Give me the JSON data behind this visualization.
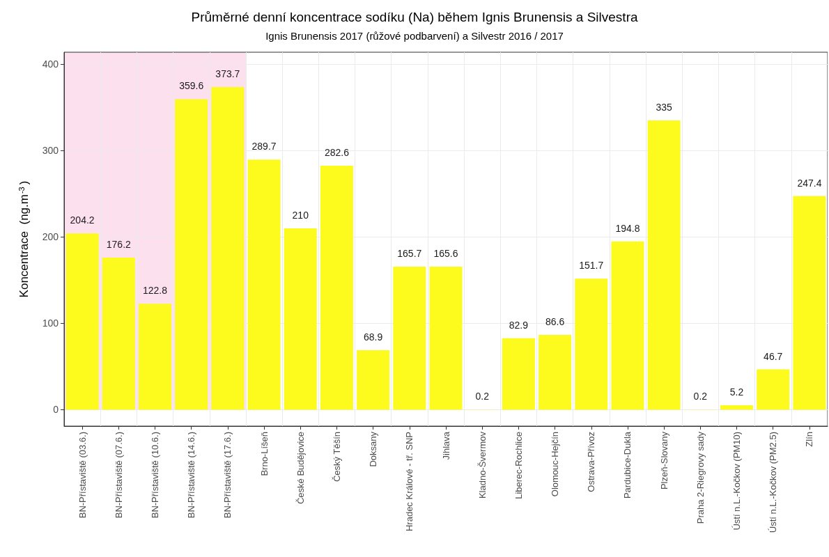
{
  "chart_data": {
    "type": "bar",
    "title": "Průměrné denní koncentrace sodíku (Na) během Ignis Brunensis a Silvestra",
    "subtitle": "Ignis Brunensis 2017 (růžové podbarvení) a Silvestr 2016 / 2017",
    "ylabel": "Koncentrace  (ng.m$^{-3}$)",
    "categories": [
      "BN-Přístaviště (03.6.)",
      "BN-Přístaviště (07.6.)",
      "BN-Přístaviště (10.6.)",
      "BN-Přístaviště (14.6.)",
      "BN-Přístaviště (17.6.)",
      "Brno-Líšeň",
      "České Budějovice",
      "Český Těšín",
      "Doksany",
      "Hradec Králové - tř. SNP",
      "Jihlava",
      "Kladno-Švermov",
      "Liberec-Rochlice",
      "Olomouc-Hejčín",
      "Ostrava-Přívoz",
      "Pardubice-Dukla",
      "Plzeň-Slovany",
      "Praha 2-Riegrovy sady",
      "Ústí n.L.-Kočkov (PM10)",
      "Ústí n.L.-Kočkov (PM2.5)",
      "Zlín"
    ],
    "values": [
      204.2,
      176.2,
      122.8,
      359.6,
      373.7,
      289.7,
      210,
      282.6,
      68.9,
      165.7,
      165.6,
      0.2,
      82.9,
      86.6,
      151.7,
      194.8,
      335,
      0.2,
      5.2,
      46.7,
      247.4
    ],
    "color": "#fdfa1e",
    "data_labels": true,
    "ylim": [
      -19,
      414
    ],
    "yticks": [
      0,
      100,
      200,
      300,
      400
    ],
    "grid": true,
    "bands": [
      {
        "axis": "x",
        "from": "BN-Přístaviště (03.6.)",
        "to": "BN-Přístaviště (17.6.)",
        "color": "#fde0ee"
      }
    ]
  }
}
